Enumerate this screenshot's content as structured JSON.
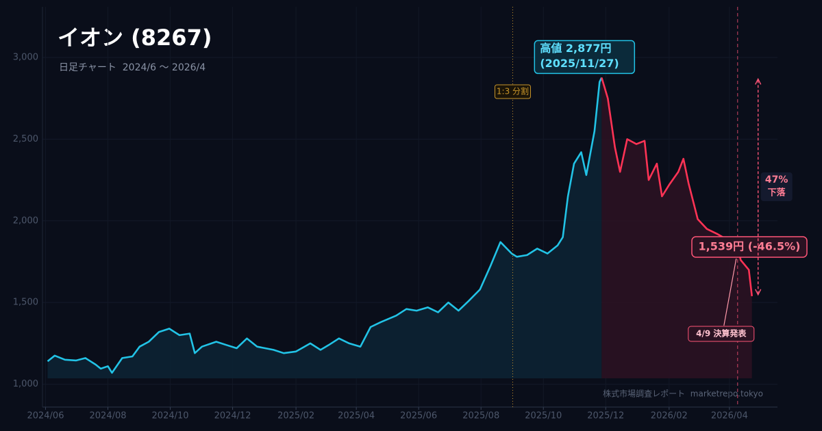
{
  "chart_data": {
    "type": "line",
    "title": "イオン (8267)",
    "subtitle": "日足チャート  2024/6 〜 2026/4",
    "watermark": "株式市場調査レポート  marketrepo.tokyo",
    "xlim": [
      "2024/05/29",
      "2026/05/18"
    ],
    "ylim": [
      860,
      3310
    ],
    "xticks": [
      {
        "value": "2024/06/01",
        "label": "2024/06"
      },
      {
        "value": "2024/08/01",
        "label": "2024/08"
      },
      {
        "value": "2024/10/01",
        "label": "2024/10"
      },
      {
        "value": "2024/12/01",
        "label": "2024/12"
      },
      {
        "value": "2025/02/01",
        "label": "2025/02"
      },
      {
        "value": "2025/04/01",
        "label": "2025/04"
      },
      {
        "value": "2025/06/01",
        "label": "2025/06"
      },
      {
        "value": "2025/08/01",
        "label": "2025/08"
      },
      {
        "value": "2025/10/01",
        "label": "2025/10"
      },
      {
        "value": "2025/12/01",
        "label": "2025/12"
      },
      {
        "value": "2026/02/01",
        "label": "2026/02"
      },
      {
        "value": "2026/04/01",
        "label": "2026/04"
      }
    ],
    "yticks": [
      {
        "value": 1000,
        "label": "1,000"
      },
      {
        "value": 1500,
        "label": "1,500"
      },
      {
        "value": 2000,
        "label": "2,000"
      },
      {
        "value": 2500,
        "label": "2,500"
      },
      {
        "value": 3000,
        "label": "3,000"
      }
    ],
    "grid": true,
    "series": [
      {
        "color": "#22c3e6",
        "fill": "#0c2233",
        "x": [
          "2024/06/03",
          "2024/06/10",
          "2024/06/20",
          "2024/07/01",
          "2024/07/10",
          "2024/07/20",
          "2024/07/25",
          "2024/08/01",
          "2024/08/05",
          "2024/08/15",
          "2024/08/25",
          "2024/09/01",
          "2024/09/10",
          "2024/09/20",
          "2024/09/30",
          "2024/10/10",
          "2024/10/20",
          "2024/10/25",
          "2024/11/01",
          "2024/11/15",
          "2024/11/25",
          "2024/12/05",
          "2024/12/15",
          "2024/12/25",
          "2025/01/10",
          "2025/01/20",
          "2025/02/01",
          "2025/02/15",
          "2025/02/25",
          "2025/03/05",
          "2025/03/15",
          "2025/03/25",
          "2025/04/05",
          "2025/04/15",
          "2025/04/25",
          "2025/05/10",
          "2025/05/20",
          "2025/05/30",
          "2025/06/10",
          "2025/06/20",
          "2025/06/30",
          "2025/07/10",
          "2025/07/20",
          "2025/07/31",
          "2025/08/10",
          "2025/08/20",
          "2025/08/31",
          "2025/09/05",
          "2025/09/15",
          "2025/09/25",
          "2025/10/05",
          "2025/10/15",
          "2025/10/20",
          "2025/10/25",
          "2025/10/31",
          "2025/11/07",
          "2025/11/12",
          "2025/11/20",
          "2025/11/25",
          "2025/11/27"
        ],
        "values": [
          1140,
          1175,
          1150,
          1145,
          1160,
          1120,
          1095,
          1110,
          1070,
          1160,
          1170,
          1230,
          1260,
          1320,
          1340,
          1300,
          1310,
          1190,
          1230,
          1260,
          1240,
          1220,
          1280,
          1230,
          1210,
          1190,
          1200,
          1250,
          1210,
          1240,
          1280,
          1250,
          1230,
          1350,
          1380,
          1420,
          1460,
          1450,
          1470,
          1440,
          1500,
          1450,
          1510,
          1580,
          1720,
          1870,
          1800,
          1780,
          1790,
          1830,
          1800,
          1850,
          1900,
          2150,
          2350,
          2420,
          2280,
          2550,
          2850,
          2877
        ]
      },
      {
        "color": "#ff3355",
        "fill": "#2a1222",
        "x": [
          "2025/11/27",
          "2025/12/03",
          "2025/12/10",
          "2025/12/15",
          "2025/12/22",
          "2025/12/31",
          "2026/01/08",
          "2026/01/12",
          "2026/01/20",
          "2026/01/25",
          "2026/02/01",
          "2026/02/10",
          "2026/02/15",
          "2026/02/20",
          "2026/03/01",
          "2026/03/10",
          "2026/03/20",
          "2026/03/31",
          "2026/04/07",
          "2026/04/12",
          "2026/04/20",
          "2026/04/23"
        ],
        "values": [
          2877,
          2750,
          2450,
          2300,
          2500,
          2470,
          2490,
          2250,
          2350,
          2150,
          2220,
          2300,
          2380,
          2230,
          2010,
          1950,
          1920,
          1880,
          1900,
          1760,
          1700,
          1539
        ]
      }
    ],
    "annotations": [
      {
        "x": "2025/09/01",
        "label": "1:3 分割",
        "color": "#c8952a"
      },
      {
        "x": "2026/04/09",
        "label": "4/9 決算発表",
        "color": "#ff5577"
      }
    ],
    "peak_label": [
      "高値 2,877円",
      "(2025/11/27)"
    ],
    "current_label": "1,539円 (-46.5%)",
    "drop_label": [
      "47%",
      "下落"
    ]
  }
}
